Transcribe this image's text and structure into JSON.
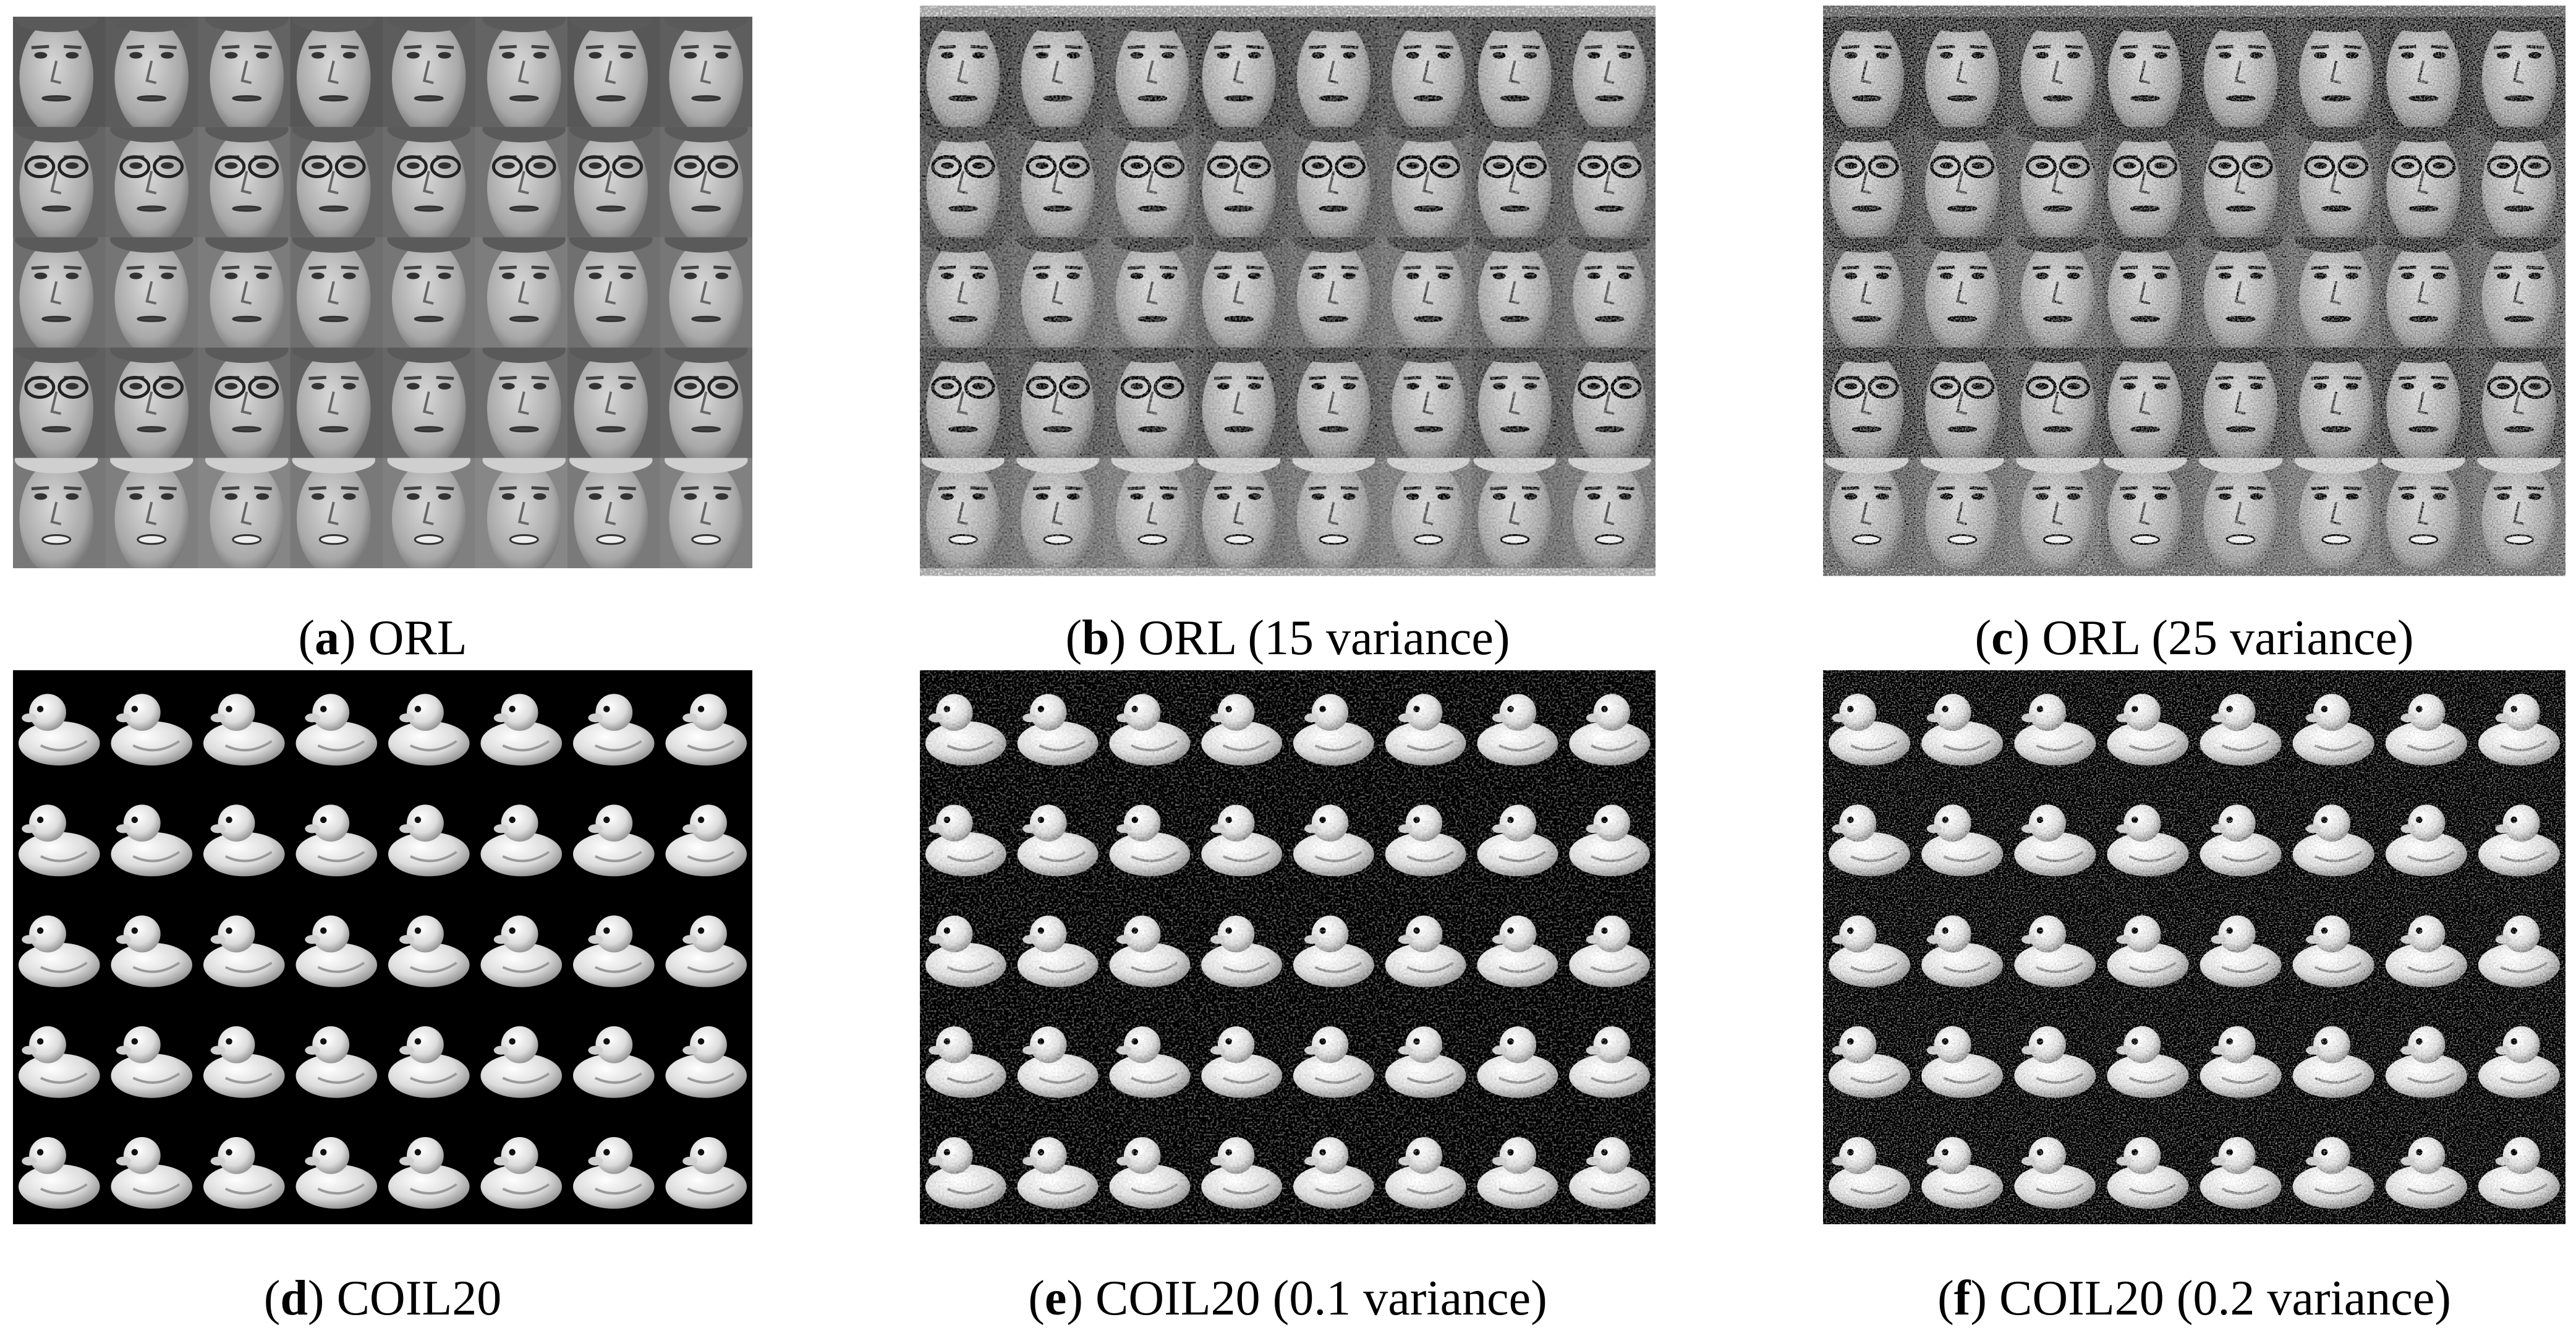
{
  "panels": [
    {
      "kind": "faces",
      "caption": [
        "(",
        "a",
        ") ORL"
      ]
    },
    {
      "kind": "faces",
      "caption": [
        "(",
        "b",
        ") ORL (15 variance)"
      ]
    },
    {
      "kind": "faces",
      "caption": [
        "(",
        "c",
        ") ORL (25 variance)"
      ]
    },
    {
      "kind": "ducks",
      "caption": [
        "(",
        "d",
        ") COIL20"
      ]
    },
    {
      "kind": "ducks",
      "caption": [
        "(",
        "e",
        ") COIL20 (0.1 variance)"
      ]
    },
    {
      "kind": "ducks",
      "caption": [
        "(",
        "f",
        ") COIL20 (0.2 variance)"
      ]
    }
  ]
}
